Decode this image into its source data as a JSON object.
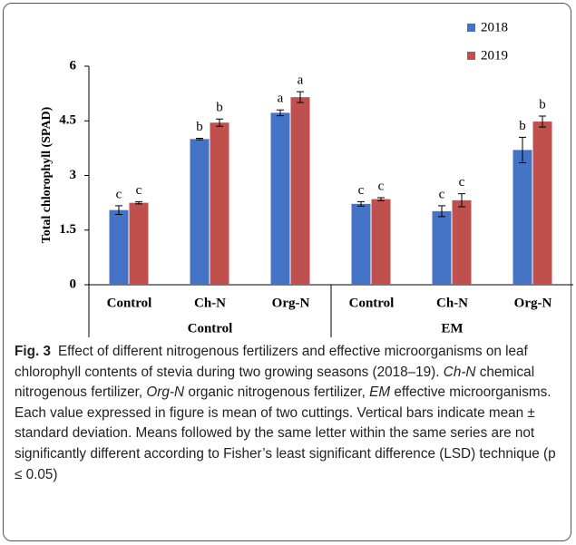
{
  "chart_data": {
    "type": "bar",
    "y_label": "Total chlorophyll (SPAD)",
    "categories": [
      "Control",
      "Ch-N",
      "Org-N",
      "Control",
      "Ch-N",
      "Org-N"
    ],
    "groups": [
      {
        "name": "Control",
        "span": 3
      },
      {
        "name": "EM",
        "span": 3
      }
    ],
    "series": [
      {
        "name": "2018",
        "color": "#4472c4",
        "values": [
          2.05,
          4.0,
          4.72,
          2.22,
          2.02,
          3.7
        ],
        "errors": [
          0.12,
          0.02,
          0.08,
          0.06,
          0.15,
          0.35
        ],
        "letters": [
          "c",
          "b",
          "a",
          "c",
          "c",
          "b"
        ]
      },
      {
        "name": "2019",
        "color": "#c0504d",
        "values": [
          2.25,
          4.45,
          5.15,
          2.35,
          2.32,
          4.48
        ],
        "errors": [
          0.03,
          0.1,
          0.15,
          0.04,
          0.18,
          0.15
        ],
        "letters": [
          "c",
          "b",
          "a",
          "c",
          "c",
          "b"
        ]
      }
    ],
    "ylim": [
      0,
      6
    ],
    "yticks": [
      0,
      1.5,
      3,
      4.5,
      6
    ],
    "legend": "top-right",
    "caption": {
      "label": "Fig. 3",
      "parts": [
        "Effect of different nitrogenous fertilizers and effective microorganisms on leaf chlorophyll contents of stevia during two growing seasons (2018–19).",
        "Ch-N",
        "chemical nitrogenous fertilizer,",
        "Org-N",
        "organic nitrogenous fertilizer,",
        "EM",
        "effective microorganisms. Each value expressed in figure is mean of two cuttings. Vertical bars indicate mean ± standard deviation. Means followed by the same letter within the same series are not significantly different according to Fisher’s least significant difference (LSD) technique (p ≤ 0.05)"
      ]
    }
  }
}
